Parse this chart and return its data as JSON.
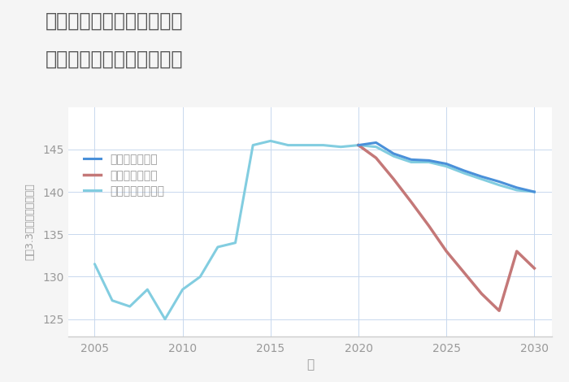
{
  "title_line1": "兵庫県西宮市今津真砂町の",
  "title_line2": "中古マンションの価格推移",
  "xlabel": "年",
  "ylabel": "坪（3.3㎡）単価（万円）",
  "background_color": "#f5f5f5",
  "plot_background": "#ffffff",
  "grid_color": "#c8d8ee",
  "years_historical": [
    2005,
    2006,
    2007,
    2008,
    2009,
    2010,
    2011,
    2012,
    2013,
    2014,
    2015,
    2016,
    2017,
    2018,
    2019,
    2020
  ],
  "values_historical": [
    131.5,
    127.2,
    126.5,
    128.5,
    125.0,
    128.5,
    130.0,
    133.5,
    134.0,
    145.5,
    146.0,
    145.5,
    145.5,
    145.5,
    145.3,
    145.5
  ],
  "years_good": [
    2020,
    2021,
    2022,
    2023,
    2024,
    2025,
    2026,
    2027,
    2028,
    2029,
    2030
  ],
  "values_good": [
    145.5,
    145.8,
    144.5,
    143.8,
    143.7,
    143.3,
    142.5,
    141.8,
    141.2,
    140.5,
    140.0
  ],
  "years_bad": [
    2020,
    2021,
    2022,
    2023,
    2024,
    2025,
    2026,
    2027,
    2028,
    2029,
    2030
  ],
  "values_bad": [
    145.5,
    144.0,
    141.5,
    138.8,
    136.0,
    133.0,
    130.5,
    128.0,
    126.0,
    133.0,
    131.0
  ],
  "years_normal": [
    2020,
    2021,
    2022,
    2023,
    2024,
    2025,
    2026,
    2027,
    2028,
    2029,
    2030
  ],
  "values_normal": [
    145.5,
    145.3,
    144.2,
    143.5,
    143.5,
    143.0,
    142.2,
    141.5,
    140.8,
    140.2,
    140.0
  ],
  "color_historical": "#82cde0",
  "color_good": "#4a90d9",
  "color_bad": "#c47878",
  "color_normal": "#82cde0",
  "line_width": 2.2,
  "ylim": [
    123,
    150
  ],
  "yticks": [
    125,
    130,
    135,
    140,
    145
  ],
  "xticks": [
    2005,
    2010,
    2015,
    2020,
    2025,
    2030
  ],
  "legend_good": "グッドシナリオ",
  "legend_bad": "バッドシナリオ",
  "legend_normal": "ノーマルシナリオ",
  "title_color": "#555555",
  "axis_color": "#999999",
  "tick_color": "#999999"
}
